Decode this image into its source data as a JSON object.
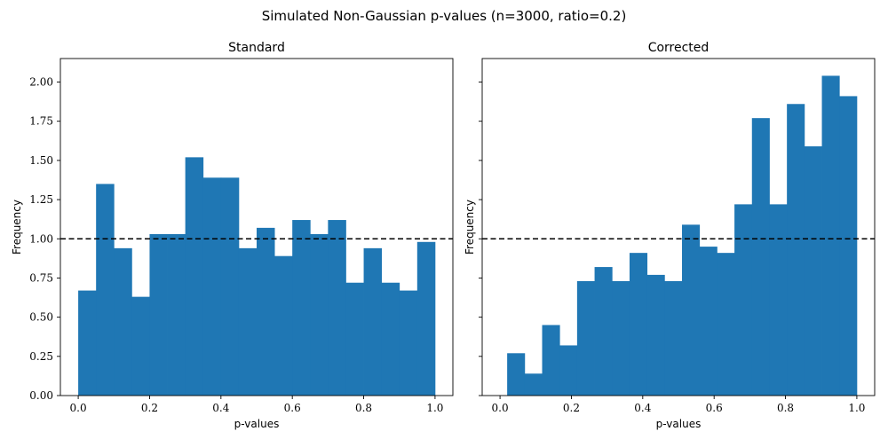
{
  "figure": {
    "suptitle": "Simulated Non-Gaussian p-values (n=3000, ratio=0.2)"
  },
  "chart_data": [
    {
      "type": "bar",
      "title": "Standard",
      "xlabel": "p-values",
      "ylabel": "Frequency",
      "bin_edges": [
        0.0,
        0.05,
        0.1,
        0.15,
        0.2,
        0.25,
        0.3,
        0.35,
        0.4,
        0.45,
        0.5,
        0.55,
        0.6,
        0.65,
        0.7,
        0.75,
        0.8,
        0.85,
        0.9,
        0.95,
        1.0
      ],
      "values": [
        0.67,
        1.35,
        0.94,
        0.63,
        1.03,
        1.03,
        1.52,
        1.39,
        1.39,
        0.94,
        1.07,
        0.89,
        1.12,
        1.03,
        1.12,
        0.72,
        0.94,
        0.72,
        0.67,
        0.98
      ],
      "reference_line": 1.0,
      "xlim": [
        -0.05,
        1.05
      ],
      "ylim": [
        0,
        2.15
      ],
      "xticks": [
        "0.0",
        "0.2",
        "0.4",
        "0.6",
        "0.8",
        "1.0"
      ],
      "yticks": [
        "0.00",
        "0.25",
        "0.50",
        "0.75",
        "1.00",
        "1.25",
        "1.50",
        "1.75",
        "2.00"
      ],
      "bar_color": "#1f77b4"
    },
    {
      "type": "bar",
      "title": "Corrected",
      "xlabel": "p-values",
      "ylabel": "Frequency",
      "bin_edges": [
        0.02,
        0.069,
        0.118,
        0.167,
        0.216,
        0.265,
        0.314,
        0.363,
        0.412,
        0.461,
        0.51,
        0.559,
        0.608,
        0.657,
        0.706,
        0.755,
        0.804,
        0.853,
        0.902,
        0.951,
        1.0
      ],
      "values": [
        0.27,
        0.14,
        0.45,
        0.32,
        0.73,
        0.82,
        0.73,
        0.91,
        0.77,
        0.73,
        1.09,
        0.95,
        0.91,
        1.22,
        1.77,
        1.22,
        1.86,
        1.59,
        2.04,
        1.91
      ],
      "reference_line": 1.0,
      "xlim": [
        -0.05,
        1.05
      ],
      "ylim": [
        0,
        2.15
      ],
      "xticks": [
        "0.0",
        "0.2",
        "0.4",
        "0.6",
        "0.8",
        "1.0"
      ],
      "yticks": [
        "0.00",
        "0.25",
        "0.50",
        "0.75",
        "1.00",
        "1.25",
        "1.50",
        "1.75",
        "2.00"
      ],
      "bar_color": "#1f77b4"
    }
  ]
}
